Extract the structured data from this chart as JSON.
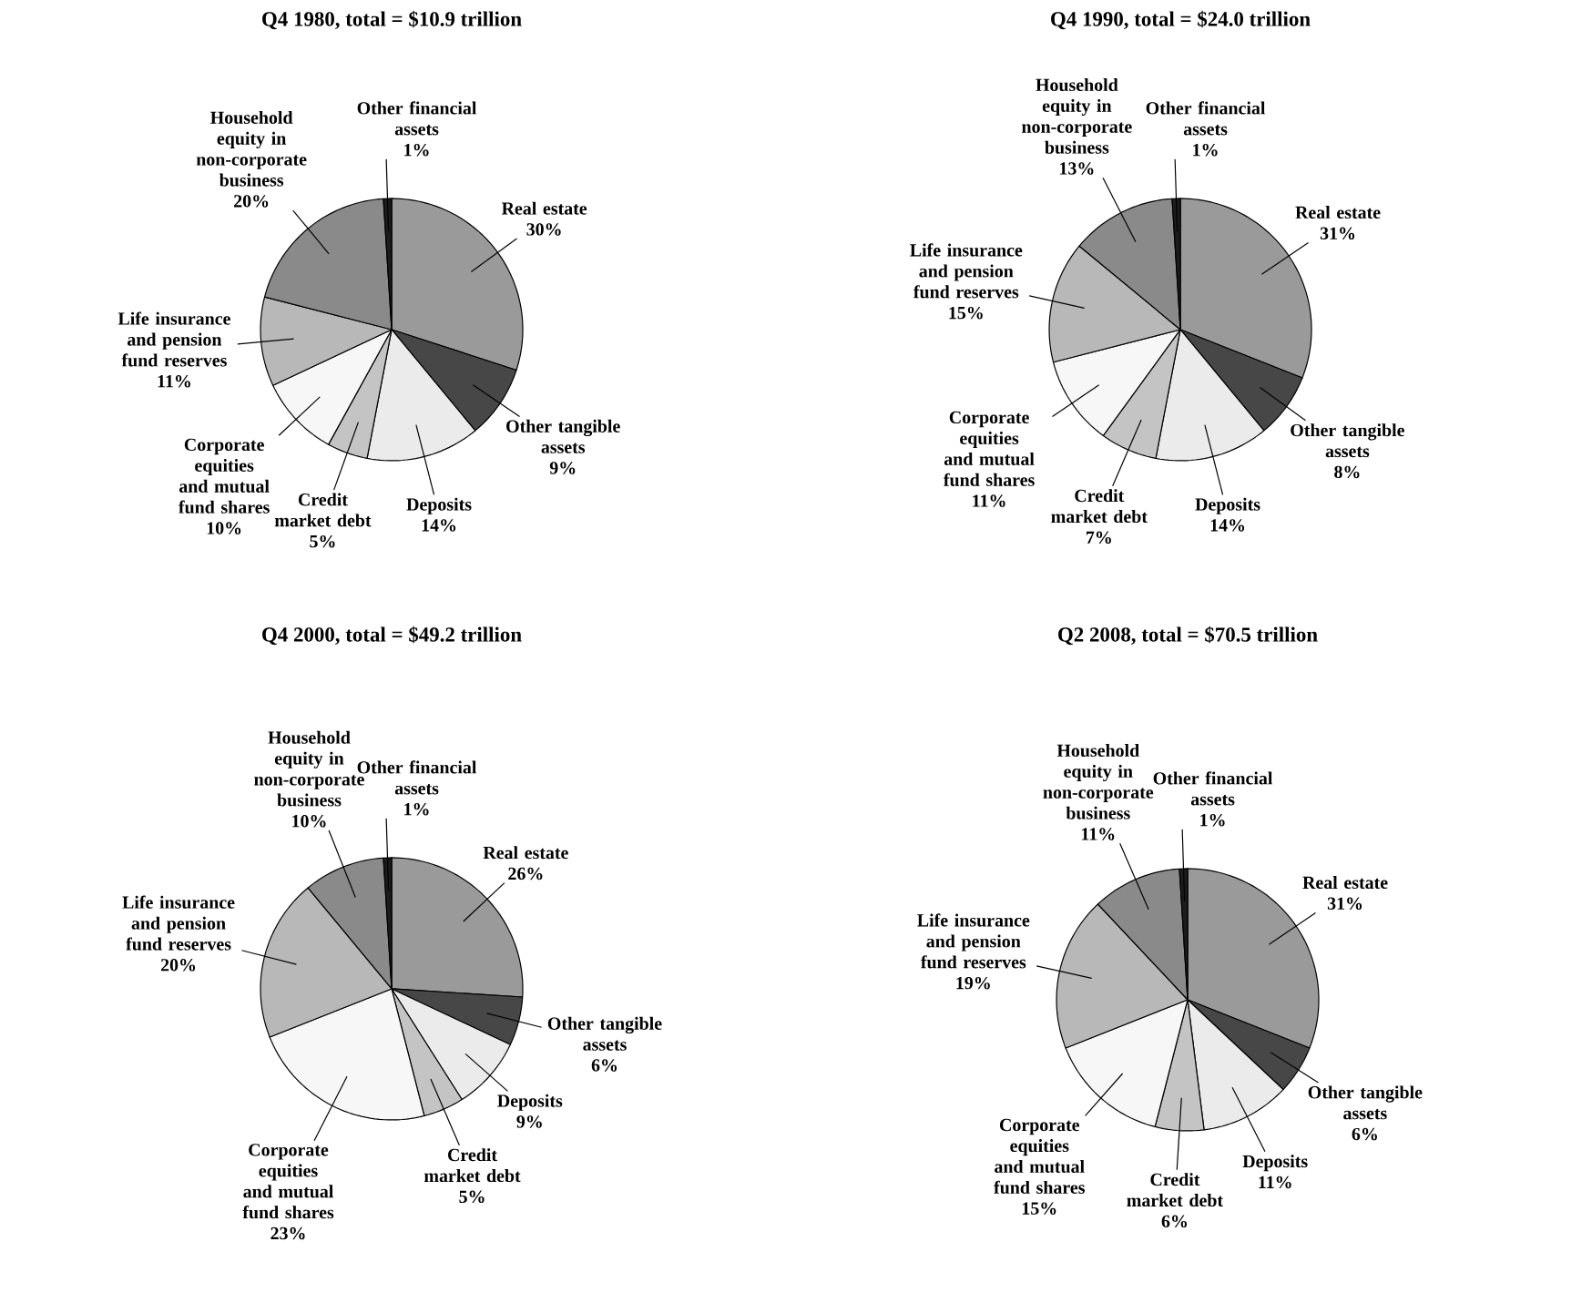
{
  "chart_data": [
    {
      "type": "pie",
      "title": "Q4 1980, total = $10.9 trillion",
      "categories": [
        "Real estate",
        "Other tangible assets",
        "Deposits",
        "Credit market debt",
        "Corporate equities and mutual fund shares",
        "Life insurance and pension fund reserves",
        "Household equity in non-corporate business",
        "Other financial assets"
      ],
      "values": [
        30,
        9,
        14,
        5,
        10,
        11,
        20,
        1
      ],
      "value_labels": [
        "30%",
        "9%",
        "14%",
        "5%",
        "10%",
        "11%",
        "20%",
        "1%"
      ],
      "colors": [
        "#9a9a9a",
        "#474747",
        "#ebebeb",
        "#c4c4c4",
        "#f7f7f7",
        "#b8b8b8",
        "#8a8a8a",
        "#1c1c1c"
      ]
    },
    {
      "type": "pie",
      "title": "Q4 1990, total = $24.0 trillion",
      "categories": [
        "Real estate",
        "Other tangible assets",
        "Deposits",
        "Credit market debt",
        "Corporate equities and mutual fund shares",
        "Life insurance and pension fund reserves",
        "Household equity in non-corporate business",
        "Other financial assets"
      ],
      "values": [
        31,
        8,
        14,
        7,
        11,
        15,
        13,
        1
      ],
      "value_labels": [
        "31%",
        "8%",
        "14%",
        "7%",
        "11%",
        "15%",
        "13%",
        "1%"
      ],
      "colors": [
        "#9a9a9a",
        "#474747",
        "#ebebeb",
        "#c4c4c4",
        "#f7f7f7",
        "#b8b8b8",
        "#8a8a8a",
        "#1c1c1c"
      ]
    },
    {
      "type": "pie",
      "title": "Q4 2000, total = $49.2 trillion",
      "categories": [
        "Real estate",
        "Other tangible assets",
        "Deposits",
        "Credit market debt",
        "Corporate equities and mutual fund shares",
        "Life insurance and pension fund reserves",
        "Household equity in non-corporate business",
        "Other financial assets"
      ],
      "values": [
        26,
        6,
        9,
        5,
        23,
        20,
        10,
        1
      ],
      "value_labels": [
        "26%",
        "6%",
        "9%",
        "5%",
        "23%",
        "20%",
        "10%",
        "1%"
      ],
      "colors": [
        "#9a9a9a",
        "#474747",
        "#ebebeb",
        "#c4c4c4",
        "#f7f7f7",
        "#b8b8b8",
        "#8a8a8a",
        "#1c1c1c"
      ]
    },
    {
      "type": "pie",
      "title": "Q2 2008, total = $70.5 trillion",
      "categories": [
        "Real estate",
        "Other tangible assets",
        "Deposits",
        "Credit market debt",
        "Corporate equities and mutual fund shares",
        "Life insurance and pension fund reserves",
        "Household equity in non-corporate business",
        "Other financial assets"
      ],
      "values": [
        31,
        6,
        11,
        6,
        15,
        19,
        11,
        1
      ],
      "value_labels": [
        "31%",
        "6%",
        "11%",
        "6%",
        "15%",
        "19%",
        "11%",
        "1%"
      ],
      "colors": [
        "#9a9a9a",
        "#474747",
        "#ebebeb",
        "#c4c4c4",
        "#f7f7f7",
        "#b8b8b8",
        "#8a8a8a",
        "#1c1c1c"
      ]
    }
  ]
}
